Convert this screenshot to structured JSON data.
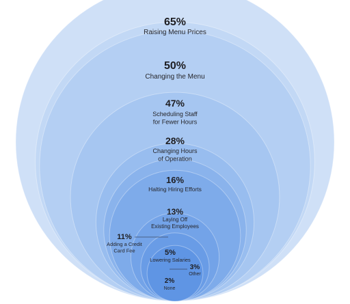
{
  "chart_data": {
    "type": "nested-bubble",
    "unit": "%",
    "title": "",
    "series": [
      {
        "value": 65,
        "value_label": "65%",
        "label": "Raising Menu Prices",
        "color": "#cfe0f7"
      },
      {
        "value": 50,
        "value_label": "50%",
        "label": "Changing the Menu",
        "color": "#c2d8f5"
      },
      {
        "value": 47,
        "value_label": "47%",
        "label": "Scheduling Staff for Fewer Hours",
        "color": "#b4cff3"
      },
      {
        "value": 28,
        "value_label": "28%",
        "label": "Changing Hours of Operation",
        "color": "#a6c6f1"
      },
      {
        "value": 16,
        "value_label": "16%",
        "label": "Halting Hiring Efforts",
        "color": "#98bdef"
      },
      {
        "value": 13,
        "value_label": "13%",
        "label": "Laying Off Existing Employees",
        "color": "#8ab3ec"
      },
      {
        "value": 11,
        "value_label": "11%",
        "label": "Adding a Credit Card Fee",
        "color": "#7eabea"
      },
      {
        "value": 5,
        "value_label": "5%",
        "label": "Lowering Salaries",
        "color": "#73a3e8"
      },
      {
        "value": 3,
        "value_label": "3%",
        "label": "Other",
        "color": "#699ce6"
      },
      {
        "value": 2,
        "value_label": "2%",
        "label": "None",
        "color": "#5f95e4"
      }
    ]
  }
}
